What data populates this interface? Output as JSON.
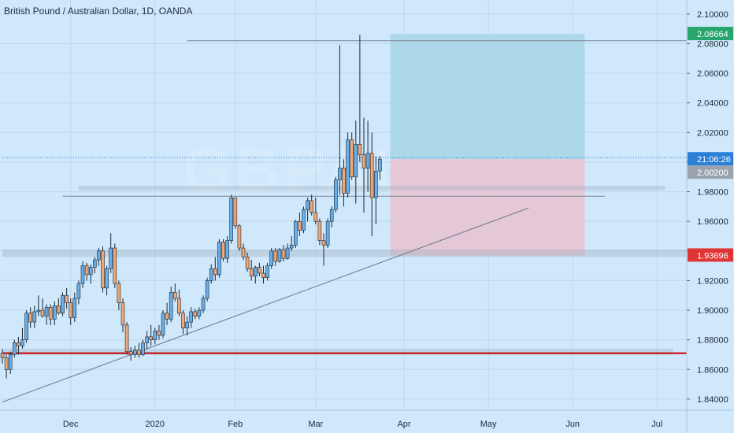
{
  "chart_data": {
    "type": "candlestick",
    "title": "British Pound / Australian Dollar, 1D, OANDA",
    "watermark": "GBPAUD",
    "y_ticks": [
      "2.10000",
      "2.08000",
      "2.06000",
      "2.04000",
      "2.02000",
      "2.00000",
      "1.98000",
      "1.96000",
      "1.94000",
      "1.92000",
      "1.90000",
      "1.88000",
      "1.86000",
      "1.84000"
    ],
    "x_ticks": [
      "Dec",
      "2020",
      "Feb",
      "Mar",
      "Apr",
      "May",
      "Jun",
      "Jul"
    ],
    "ylim": [
      1.8325,
      2.1095
    ],
    "price_tags": {
      "target": "2.08664",
      "countdown": "21:06:26",
      "current": "2.00200",
      "stop": "1.93696"
    },
    "candles": [
      [
        1.871,
        1.874,
        1.864,
        1.868
      ],
      [
        1.868,
        1.87,
        1.854,
        1.86
      ],
      [
        1.86,
        1.872,
        1.857,
        1.87
      ],
      [
        1.87,
        1.88,
        1.868,
        1.878
      ],
      [
        1.878,
        1.882,
        1.87,
        1.876
      ],
      [
        1.876,
        1.888,
        1.874,
        1.88
      ],
      [
        1.88,
        1.9,
        1.878,
        1.898
      ],
      [
        1.898,
        1.902,
        1.888,
        1.892
      ],
      [
        1.892,
        1.903,
        1.888,
        1.899
      ],
      [
        1.899,
        1.91,
        1.896,
        1.9
      ],
      [
        1.9,
        1.908,
        1.895,
        1.896
      ],
      [
        1.896,
        1.904,
        1.89,
        1.902
      ],
      [
        1.902,
        1.904,
        1.89,
        1.894
      ],
      [
        1.894,
        1.906,
        1.89,
        1.903
      ],
      [
        1.903,
        1.908,
        1.897,
        1.898
      ],
      [
        1.898,
        1.912,
        1.896,
        1.91
      ],
      [
        1.91,
        1.915,
        1.901,
        1.905
      ],
      [
        1.905,
        1.908,
        1.89,
        1.895
      ],
      [
        1.895,
        1.912,
        1.892,
        1.908
      ],
      [
        1.908,
        1.92,
        1.904,
        1.918
      ],
      [
        1.918,
        1.933,
        1.915,
        1.93
      ],
      [
        1.93,
        1.932,
        1.92,
        1.924
      ],
      [
        1.924,
        1.931,
        1.918,
        1.929
      ],
      [
        1.929,
        1.936,
        1.925,
        1.934
      ],
      [
        1.934,
        1.942,
        1.93,
        1.94
      ],
      [
        1.94,
        1.943,
        1.912,
        1.915
      ],
      [
        1.915,
        1.93,
        1.91,
        1.928
      ],
      [
        1.928,
        1.952,
        1.925,
        1.942
      ],
      [
        1.942,
        1.945,
        1.915,
        1.918
      ],
      [
        1.918,
        1.92,
        1.9,
        1.905
      ],
      [
        1.905,
        1.908,
        1.885,
        1.89
      ],
      [
        1.89,
        1.892,
        1.87,
        1.872
      ],
      [
        1.872,
        1.875,
        1.866,
        1.87
      ],
      [
        1.87,
        1.876,
        1.868,
        1.873
      ],
      [
        1.873,
        1.878,
        1.868,
        1.87
      ],
      [
        1.87,
        1.88,
        1.869,
        1.878
      ],
      [
        1.878,
        1.886,
        1.874,
        1.882
      ],
      [
        1.882,
        1.89,
        1.876,
        1.88
      ],
      [
        1.88,
        1.888,
        1.877,
        1.886
      ],
      [
        1.886,
        1.89,
        1.88,
        1.883
      ],
      [
        1.883,
        1.9,
        1.881,
        1.898
      ],
      [
        1.898,
        1.905,
        1.89,
        1.894
      ],
      [
        1.894,
        1.916,
        1.892,
        1.912
      ],
      [
        1.912,
        1.918,
        1.906,
        1.908
      ],
      [
        1.908,
        1.914,
        1.896,
        1.898
      ],
      [
        1.898,
        1.9,
        1.884,
        1.888
      ],
      [
        1.888,
        1.896,
        1.883,
        1.892
      ],
      [
        1.892,
        1.902,
        1.888,
        1.899
      ],
      [
        1.899,
        1.901,
        1.894,
        1.896
      ],
      [
        1.896,
        1.902,
        1.894,
        1.9
      ],
      [
        1.9,
        1.91,
        1.898,
        1.908
      ],
      [
        1.908,
        1.922,
        1.906,
        1.92
      ],
      [
        1.92,
        1.931,
        1.918,
        1.928
      ],
      [
        1.928,
        1.936,
        1.92,
        1.924
      ],
      [
        1.924,
        1.948,
        1.922,
        1.946
      ],
      [
        1.946,
        1.948,
        1.933,
        1.935
      ],
      [
        1.935,
        1.95,
        1.932,
        1.947
      ],
      [
        1.947,
        1.978,
        1.945,
        1.976
      ],
      [
        1.976,
        1.976,
        1.955,
        1.957
      ],
      [
        1.957,
        1.958,
        1.94,
        1.942
      ],
      [
        1.942,
        1.945,
        1.934,
        1.936
      ],
      [
        1.936,
        1.939,
        1.926,
        1.928
      ],
      [
        1.928,
        1.934,
        1.92,
        1.923
      ],
      [
        1.923,
        1.93,
        1.918,
        1.929
      ],
      [
        1.929,
        1.932,
        1.923,
        1.925
      ],
      [
        1.925,
        1.93,
        1.918,
        1.922
      ],
      [
        1.922,
        1.932,
        1.92,
        1.93
      ],
      [
        1.93,
        1.942,
        1.928,
        1.94
      ],
      [
        1.94,
        1.942,
        1.93,
        1.933
      ],
      [
        1.933,
        1.942,
        1.932,
        1.941
      ],
      [
        1.941,
        1.944,
        1.933,
        1.935
      ],
      [
        1.935,
        1.945,
        1.934,
        1.942
      ],
      [
        1.942,
        1.95,
        1.94,
        1.944
      ],
      [
        1.944,
        1.961,
        1.942,
        1.96
      ],
      [
        1.96,
        1.966,
        1.95,
        1.954
      ],
      [
        1.954,
        1.97,
        1.952,
        1.968
      ],
      [
        1.968,
        1.976,
        1.96,
        1.974
      ],
      [
        1.974,
        1.978,
        1.964,
        1.966
      ],
      [
        1.966,
        1.976,
        1.958,
        1.96
      ],
      [
        1.96,
        1.962,
        1.944,
        1.947
      ],
      [
        1.947,
        1.952,
        1.93,
        1.944
      ],
      [
        1.944,
        1.962,
        1.942,
        1.96
      ],
      [
        1.96,
        1.97,
        1.956,
        1.968
      ],
      [
        1.968,
        1.99,
        1.966,
        1.988
      ],
      [
        1.988,
        2.079,
        1.978,
        1.996
      ],
      [
        1.996,
        2.002,
        1.97,
        1.979
      ],
      [
        1.979,
        2.02,
        1.976,
        2.015
      ],
      [
        2.015,
        2.02,
        1.988,
        1.99
      ],
      [
        1.99,
        2.028,
        1.972,
        2.012
      ],
      [
        2.012,
        2.086,
        2.0,
        2.005
      ],
      [
        2.005,
        2.03,
        1.966,
        1.996
      ],
      [
        1.996,
        2.028,
        1.98,
        2.006
      ],
      [
        2.006,
        2.02,
        1.95,
        1.976
      ],
      [
        1.976,
        2.004,
        1.958,
        1.994
      ],
      [
        1.994,
        2.004,
        1.988,
        2.002
      ]
    ],
    "trendline": {
      "from": [
        0,
        1.838
      ],
      "to": [
        131,
        1.969
      ]
    },
    "long_position": {
      "start": 97,
      "end": 145,
      "entry": 2.002,
      "target": 2.0866,
      "stop": 1.937
    },
    "horizontal_lines": [
      {
        "from": 46,
        "to": 1000,
        "y": 2.082,
        "color": "#7a8590"
      },
      {
        "from": 15,
        "to": 150,
        "y": 1.977,
        "color": "#7a8590"
      },
      {
        "from": 0,
        "to": 1000,
        "y": 1.871,
        "color": "#cc0000"
      },
      {
        "from": 0,
        "to": 1000,
        "y": 2.003,
        "color": "#2c7fd6",
        "dashed": true
      }
    ],
    "zones": [
      {
        "from": 19,
        "to": 165,
        "y1": 1.981,
        "y2": 1.984
      },
      {
        "from": 0,
        "to": 1000,
        "y1": 1.936,
        "y2": 1.941
      },
      {
        "from": 0,
        "to": 167,
        "y1": 1.87,
        "y2": 1.874
      }
    ],
    "colors": {
      "background": "#cfe8fb",
      "up_candle": "#6aaee8",
      "down_candle": "#f0a675",
      "wick": "#1b2733",
      "target_zone": "#a8d6e8",
      "stop_zone": "#e7c4d3",
      "target_tag": "#27a56d",
      "stop_tag": "#e03535",
      "countdown_tag": "#2c7fd6",
      "current_tag": "#9aa4ae"
    }
  }
}
